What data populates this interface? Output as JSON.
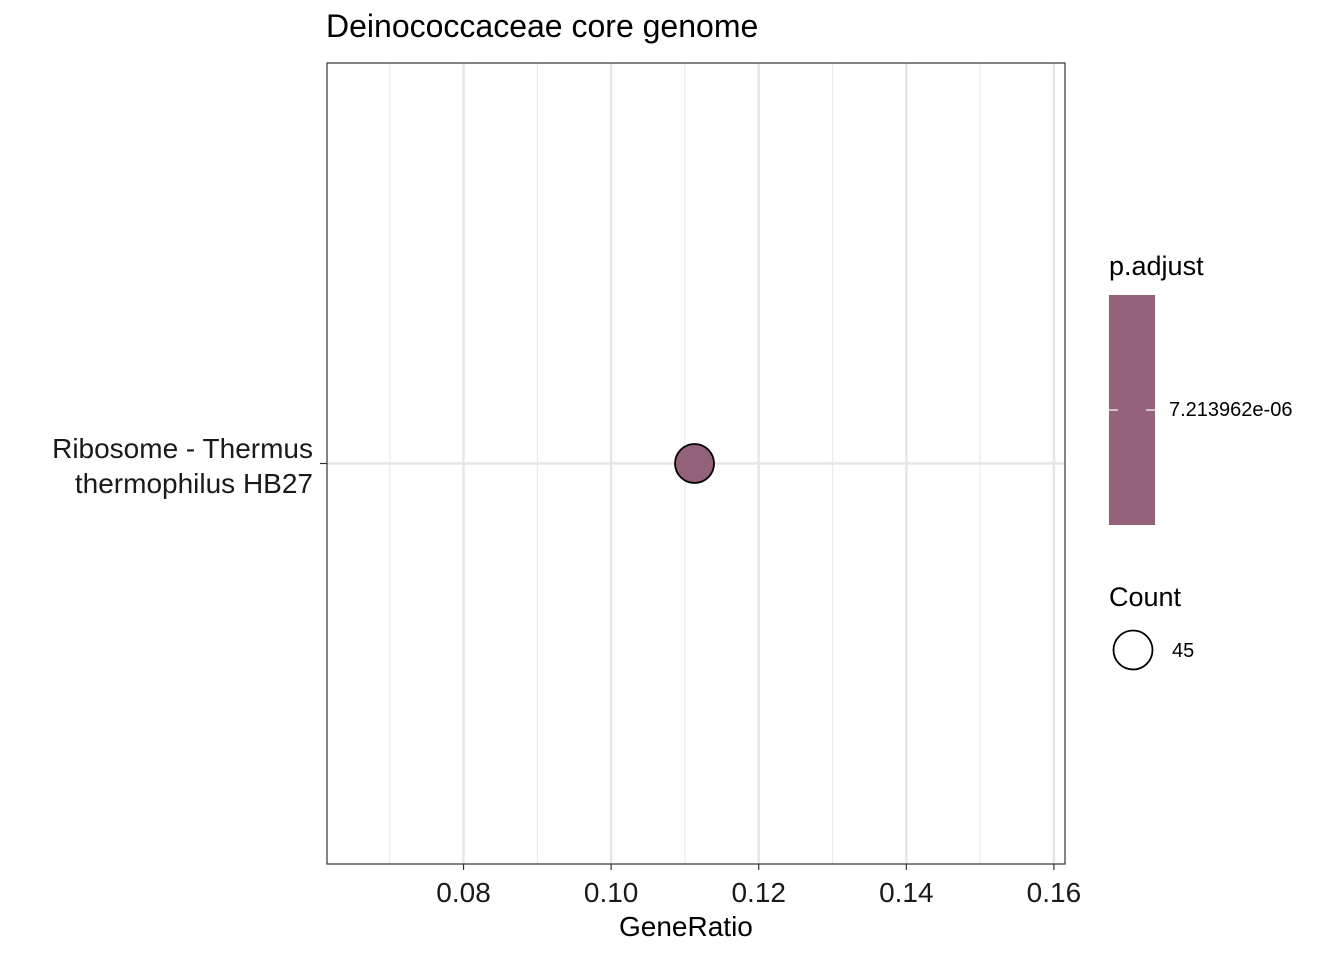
{
  "chart_data": {
    "type": "scatter",
    "title": "Deinococcaceae core genome",
    "xlabel": "GeneRatio",
    "ylabel": "",
    "xlim": [
      0.0615,
      0.1615
    ],
    "x_ticks": [
      "0.08",
      "0.10",
      "0.12",
      "0.14",
      "0.16"
    ],
    "x_tick_values": [
      0.08,
      0.1,
      0.12,
      0.14,
      0.16
    ],
    "categories": [
      "Ribosome - Thermus thermophilus HB27"
    ],
    "category_lines": [
      "Ribosome - Thermus",
      "thermophilus HB27"
    ],
    "points": [
      {
        "category": "Ribosome - Thermus thermophilus HB27",
        "x": 0.1113,
        "count": 45,
        "p_adjust": "7.213962e-06",
        "color": "#93627a"
      }
    ],
    "grid": true,
    "legend_position": "right",
    "legend": {
      "color_title": "p.adjust",
      "color_label": "7.213962e-06",
      "color_fill": "#93627a",
      "size_title": "Count",
      "size_label": "45"
    }
  }
}
